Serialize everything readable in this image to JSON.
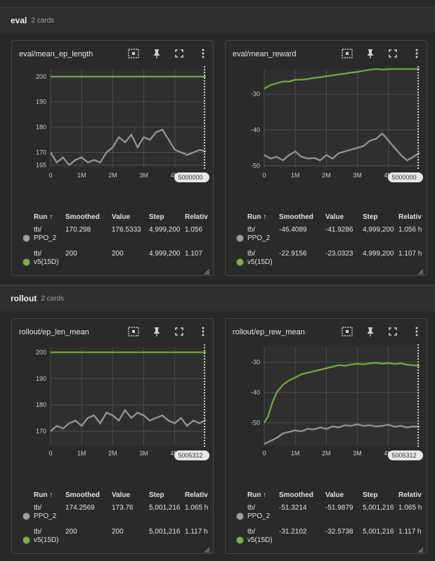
{
  "groups": [
    {
      "name": "eval",
      "count": "2 cards"
    },
    {
      "name": "rollout",
      "count": "2 cards"
    }
  ],
  "table_headers": {
    "run": "Run ↑",
    "smoothed": "Smoothed",
    "value": "Value",
    "step": "Step",
    "relative": "Relativ"
  },
  "colors": {
    "ppo2": "#9aa0a6",
    "v5": "#7cb342",
    "background": "#303030",
    "card": "#2a2a2a"
  },
  "icons": [
    "fit-domain-icon",
    "pin-icon",
    "fullscreen-icon",
    "more-vert-icon"
  ],
  "cards": [
    {
      "title": "eval/mean_ep_length",
      "step_badge": "5000000",
      "rows": [
        {
          "run_line1": "tb/",
          "run_line2": "PPO_2",
          "smoothed": "170.298",
          "value": "176.5333",
          "step": "4,999,200",
          "relative": "1.056"
        },
        {
          "run_line1": "tb/",
          "run_line2": "v5(15D)",
          "smoothed": "200",
          "value": "200",
          "step": "4,999,200",
          "relative": "1.107"
        }
      ]
    },
    {
      "title": "eval/mean_reward",
      "step_badge": "5000000",
      "rows": [
        {
          "run_line1": "tb/",
          "run_line2": "PPO_2",
          "smoothed": "-46.4089",
          "value": "-41.9286",
          "step": "4,999,200",
          "relative": "1.056 h"
        },
        {
          "run_line1": "tb/",
          "run_line2": "v5(15D)",
          "smoothed": "-22.9156",
          "value": "-23.0323",
          "step": "4,999,200",
          "relative": "1.107 h"
        }
      ]
    },
    {
      "title": "rollout/ep_len_mean",
      "step_badge": "5005312",
      "rows": [
        {
          "run_line1": "tb/",
          "run_line2": "PPO_2",
          "smoothed": "174.2569",
          "value": "173.76",
          "step": "5,001,216",
          "relative": "1.065 h"
        },
        {
          "run_line1": "tb/",
          "run_line2": "v5(15D)",
          "smoothed": "200",
          "value": "200",
          "step": "5,001,216",
          "relative": "1.117 h"
        }
      ]
    },
    {
      "title": "rollout/ep_rew_mean",
      "step_badge": "5005312",
      "rows": [
        {
          "run_line1": "tb/",
          "run_line2": "PPO_2",
          "smoothed": "-51.3214",
          "value": "-51.9879",
          "step": "5,001,216",
          "relative": "1.065 h"
        },
        {
          "run_line1": "tb/",
          "run_line2": "v5(15D)",
          "smoothed": "-31.2102",
          "value": "-32.5738",
          "step": "5,001,216",
          "relative": "1.117 h"
        }
      ]
    }
  ],
  "chart_data": [
    {
      "type": "line",
      "title": "eval/mean_ep_length",
      "xlim": [
        0,
        5000000
      ],
      "x_ticks": [
        "0",
        "1M",
        "2M",
        "3M",
        "4M"
      ],
      "y_ticks": [
        "165",
        "170",
        "180",
        "190",
        "200"
      ],
      "ylim": [
        164,
        203
      ],
      "series": [
        {
          "name": "tb/PPO_2",
          "x": [
            0,
            200000,
            400000,
            600000,
            800000,
            1000000,
            1200000,
            1400000,
            1600000,
            1800000,
            2000000,
            2200000,
            2400000,
            2600000,
            2800000,
            3000000,
            3200000,
            3400000,
            3600000,
            3800000,
            4000000,
            4200000,
            4400000,
            4600000,
            4800000,
            5000000
          ],
          "y": [
            170,
            166,
            168,
            165,
            167,
            168,
            166,
            167,
            166,
            170,
            172,
            176,
            174,
            177,
            172,
            176,
            175,
            178,
            179,
            175,
            171,
            170,
            169,
            170,
            171,
            170.3
          ]
        },
        {
          "name": "tb/v5(15D)",
          "x": [
            0,
            5000000
          ],
          "y": [
            200,
            200
          ]
        }
      ]
    },
    {
      "type": "line",
      "title": "eval/mean_reward",
      "xlim": [
        0,
        5000000
      ],
      "x_ticks": [
        "0",
        "1M",
        "2M",
        "3M",
        "4M"
      ],
      "y_ticks": [
        "-30",
        "-40",
        "-50"
      ],
      "ylim": [
        -50.5,
        -23
      ],
      "series": [
        {
          "name": "tb/PPO_2",
          "x": [
            0,
            200000,
            400000,
            600000,
            800000,
            1000000,
            1200000,
            1400000,
            1600000,
            1800000,
            2000000,
            2200000,
            2400000,
            2600000,
            2800000,
            3000000,
            3200000,
            3400000,
            3600000,
            3800000,
            4000000,
            4200000,
            4400000,
            4600000,
            4800000,
            5000000
          ],
          "y": [
            -47,
            -48,
            -47.5,
            -48.5,
            -47,
            -46,
            -47.5,
            -48,
            -47.8,
            -48.5,
            -47,
            -48,
            -46.5,
            -46,
            -45.5,
            -45,
            -44.5,
            -43,
            -42.5,
            -41,
            -43,
            -45,
            -47,
            -48.5,
            -47.5,
            -46.4
          ]
        },
        {
          "name": "tb/v5(15D)",
          "x": [
            0,
            200000,
            400000,
            600000,
            800000,
            1000000,
            1200000,
            1400000,
            1600000,
            1800000,
            2000000,
            2200000,
            2400000,
            2600000,
            2800000,
            3000000,
            3200000,
            3400000,
            3600000,
            3800000,
            4000000,
            4200000,
            4400000,
            4600000,
            4800000,
            5000000
          ],
          "y": [
            -28.5,
            -27.5,
            -27,
            -26.5,
            -26.5,
            -26,
            -26,
            -25.8,
            -25.5,
            -25.3,
            -25,
            -24.8,
            -24.5,
            -24.3,
            -24,
            -23.8,
            -23.5,
            -23.2,
            -22.6,
            -23.2,
            -23,
            -22.8,
            -22.6,
            -22.5,
            -22.8,
            -22.9
          ]
        }
      ]
    },
    {
      "type": "line",
      "title": "rollout/ep_len_mean",
      "xlim": [
        0,
        5005312
      ],
      "x_ticks": [
        "0",
        "1M",
        "2M",
        "3M",
        "4M"
      ],
      "y_ticks": [
        "170",
        "180",
        "190",
        "200"
      ],
      "ylim": [
        164.5,
        202
      ],
      "series": [
        {
          "name": "tb/PPO_2",
          "x": [
            0,
            200000,
            400000,
            600000,
            800000,
            1000000,
            1200000,
            1400000,
            1600000,
            1800000,
            2000000,
            2200000,
            2400000,
            2600000,
            2800000,
            3000000,
            3200000,
            3400000,
            3600000,
            3800000,
            4000000,
            4200000,
            4400000,
            4600000,
            4800000,
            5005312
          ],
          "y": [
            170,
            172,
            171,
            173,
            174,
            172,
            175,
            176,
            173,
            177,
            176,
            174,
            178,
            175,
            177,
            176,
            174,
            175,
            176,
            174,
            173,
            175,
            172,
            174,
            173,
            174.3
          ]
        },
        {
          "name": "tb/v5(15D)",
          "x": [
            0,
            5005312
          ],
          "y": [
            200,
            200
          ]
        }
      ]
    },
    {
      "type": "line",
      "title": "rollout/ep_rew_mean",
      "xlim": [
        0,
        5005312
      ],
      "x_ticks": [
        "0",
        "1M",
        "2M",
        "3M",
        "4M"
      ],
      "y_ticks": [
        "-30",
        "-40",
        "-50"
      ],
      "ylim": [
        -57.5,
        -25
      ],
      "series": [
        {
          "name": "tb/PPO_2",
          "x": [
            0,
            200000,
            400000,
            600000,
            800000,
            1000000,
            1200000,
            1400000,
            1600000,
            1800000,
            2000000,
            2200000,
            2400000,
            2600000,
            2800000,
            3000000,
            3200000,
            3400000,
            3600000,
            3800000,
            4000000,
            4200000,
            4400000,
            4600000,
            4800000,
            5005312
          ],
          "y": [
            -57,
            -56,
            -55,
            -53.5,
            -53,
            -52.5,
            -52.8,
            -52,
            -52.2,
            -51.5,
            -52,
            -51.2,
            -51.5,
            -50.8,
            -51,
            -50.5,
            -51,
            -50.8,
            -51.2,
            -51,
            -50.6,
            -51.3,
            -51,
            -51.5,
            -51.2,
            -51.3
          ]
        },
        {
          "name": "tb/v5(15D)",
          "x": [
            0,
            120000,
            240000,
            400000,
            600000,
            800000,
            1000000,
            1200000,
            1400000,
            1600000,
            1800000,
            2000000,
            2200000,
            2400000,
            2600000,
            2800000,
            3000000,
            3200000,
            3400000,
            3600000,
            3800000,
            4000000,
            4200000,
            4400000,
            4600000,
            4800000,
            5005312
          ],
          "y": [
            -50,
            -48,
            -44,
            -40,
            -37.5,
            -36,
            -35,
            -34,
            -33.5,
            -33,
            -32.5,
            -32,
            -31.5,
            -31,
            -31.2,
            -30.8,
            -30.5,
            -30.7,
            -30.4,
            -30.2,
            -30.5,
            -30.3,
            -30.6,
            -30.4,
            -30.8,
            -31,
            -31.2
          ]
        }
      ]
    }
  ]
}
